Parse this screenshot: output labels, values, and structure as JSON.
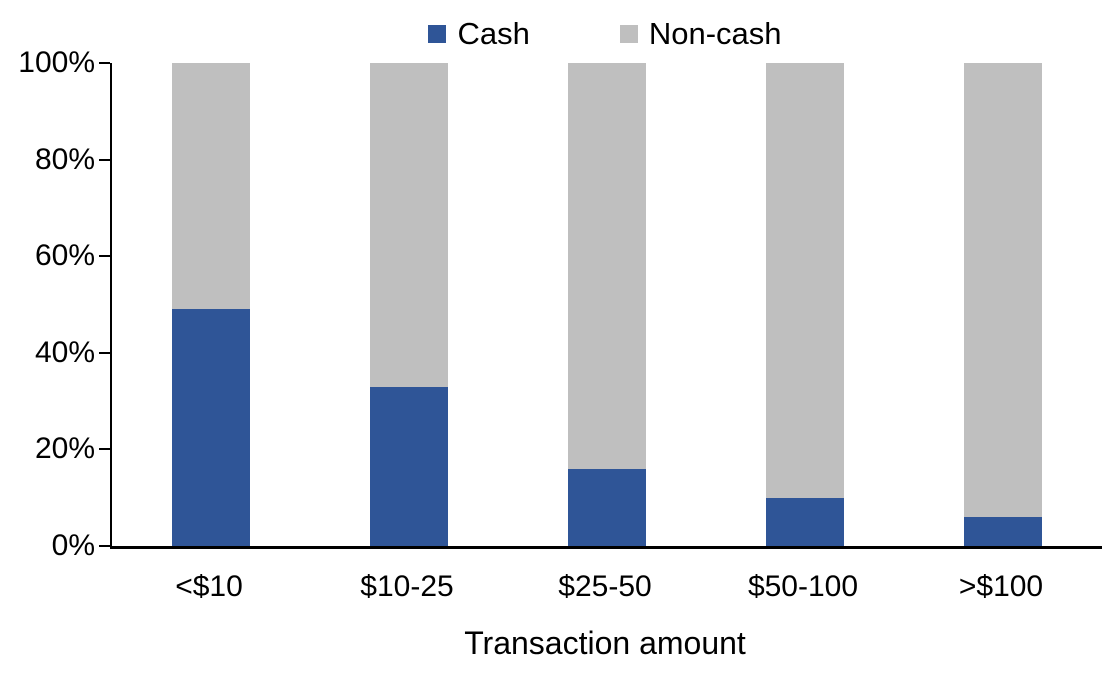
{
  "chart_data": {
    "type": "bar",
    "stacked": true,
    "stacked_to_100_percent": true,
    "title": "",
    "categories": [
      "<$10",
      "$10-25",
      "$25-50",
      "$50-100",
      ">$100"
    ],
    "series": [
      {
        "name": "Cash",
        "color": "#2F5597",
        "values": [
          49,
          33,
          16,
          10,
          6
        ]
      },
      {
        "name": "Non-cash",
        "color": "#BFBFBF",
        "values": [
          51,
          67,
          84,
          90,
          94
        ]
      }
    ],
    "xlabel": "Transaction amount",
    "ylabel": "",
    "ylim": [
      0,
      100
    ],
    "ytick_labels": [
      "0%",
      "20%",
      "40%",
      "60%",
      "80%",
      "100%"
    ],
    "legend_position": "top-center",
    "grid": false,
    "axis_color": "#000000",
    "background_color": "#FFFFFF"
  }
}
